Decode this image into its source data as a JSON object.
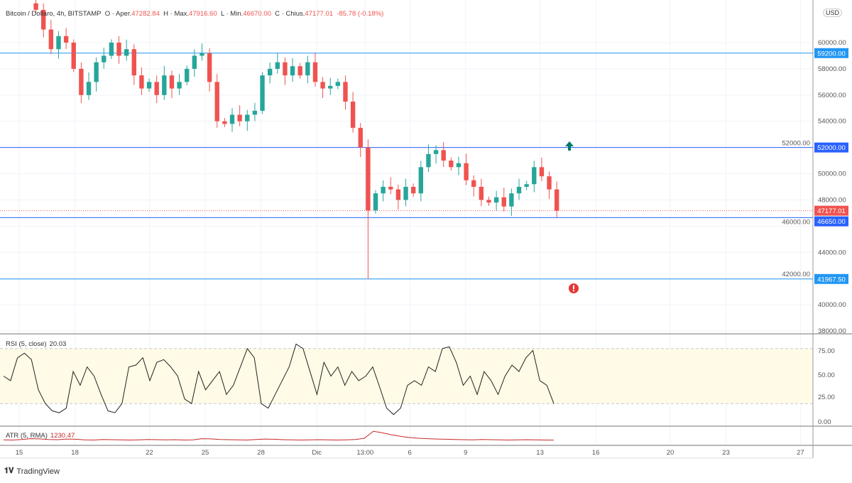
{
  "legend": {
    "symbol": "Bitcoin / Dollaro, 4h, BITSTAMP",
    "o_label": "O · Aper.",
    "open": "47282.84",
    "h_label": "H · Max.",
    "high": "47916.60",
    "l_label": "L · Min.",
    "low": "46670.00",
    "c_label": "C · Chius.",
    "close": "47177.01",
    "change": "-85.78 (-0.18%)"
  },
  "currency": "USD",
  "rsi": {
    "label": "RSI (5, close)",
    "value": "20.03",
    "ticks": [
      "75.00",
      "50.00",
      "25.00",
      "0.00"
    ],
    "values": [
      50,
      45,
      70,
      75,
      68,
      35,
      20,
      12,
      10,
      15,
      55,
      40,
      60,
      50,
      30,
      12,
      10,
      20,
      60,
      62,
      70,
      45,
      65,
      68,
      60,
      50,
      25,
      20,
      55,
      35,
      45,
      55,
      30,
      40,
      60,
      80,
      70,
      20,
      15,
      30,
      45,
      60,
      85,
      80,
      55,
      30,
      65,
      50,
      60,
      40,
      55,
      45,
      50,
      60,
      38,
      15,
      8,
      15,
      40,
      45,
      40,
      60,
      55,
      80,
      82,
      65,
      40,
      50,
      30,
      55,
      45,
      30,
      50,
      62,
      55,
      70,
      78,
      45,
      40,
      20
    ]
  },
  "atr": {
    "label": "ATR (5, RMA)",
    "value": "1230.47",
    "values": [
      1300,
      1250,
      1400,
      1600,
      1550,
      1400,
      1350,
      1500,
      1450,
      1300,
      1250,
      1400,
      1350,
      1300,
      1250,
      1300,
      1400,
      1350,
      1300,
      1350,
      1250,
      1300,
      1600,
      1550,
      1400,
      1350,
      1300,
      1250,
      1400,
      1500,
      1450,
      1350,
      1300,
      1250,
      1300,
      1350,
      1300,
      1250,
      1300,
      1400,
      1700,
      3500,
      3100,
      2600,
      2200,
      1900,
      1700,
      1600,
      1500,
      1450,
      1400,
      1350,
      1300,
      1400,
      1350,
      1300,
      1250,
      1300,
      1350,
      1300,
      1250,
      1230
    ]
  },
  "chart_data": {
    "type": "candlestick",
    "title": "Bitcoin / Dollaro, 4h, BITSTAMP",
    "ylim": [
      38000,
      62500
    ],
    "y_ticks": [
      60000,
      58000,
      56000,
      54000,
      52000,
      50000,
      48000,
      46000,
      44000,
      42000,
      40000,
      38000
    ],
    "x_ticks": [
      {
        "label": "15",
        "day": 0
      },
      {
        "label": "18",
        "day": 3
      },
      {
        "label": "22",
        "day": 7
      },
      {
        "label": "25",
        "day": 10
      },
      {
        "label": "28",
        "day": 13
      },
      {
        "label": "Dic",
        "day": 16
      },
      {
        "label": "13:00",
        "day": 18.6
      },
      {
        "label": "6",
        "day": 21
      },
      {
        "label": "9",
        "day": 24
      },
      {
        "label": "13",
        "day": 28
      },
      {
        "label": "16",
        "day": 31
      },
      {
        "label": "20",
        "day": 35
      },
      {
        "label": "23",
        "day": 38
      },
      {
        "label": "27",
        "day": 42
      }
    ],
    "candle_range_days": [
      0.9,
      28.9
    ],
    "first_open": 63000,
    "closes": [
      62500,
      61000,
      59500,
      60500,
      60000,
      58000,
      56000,
      57000,
      58500,
      59000,
      60000,
      59000,
      59500,
      57500,
      56500,
      57000,
      56000,
      57500,
      56500,
      57000,
      58000,
      59000,
      59200,
      57000,
      54000,
      53800,
      54500,
      54000,
      54500,
      54800,
      57500,
      58000,
      58500,
      57500,
      58200,
      57500,
      58500,
      57000,
      56500,
      56700,
      57000,
      55500,
      53500,
      52000,
      47200,
      48500,
      49000,
      48800,
      48000,
      49000,
      48500,
      50500,
      51500,
      51800,
      51000,
      50500,
      50800,
      49500,
      49000,
      48000,
      47800,
      48200,
      47500,
      48500,
      49000,
      49200,
      50500,
      49800,
      48800,
      47177.01
    ],
    "low_overrides": [
      {
        "index": 44,
        "low": 41967.5
      }
    ],
    "levels": [
      {
        "price": 59200,
        "label": "59200.00",
        "color": "#2196f3"
      },
      {
        "price": 52000,
        "label": "52000.00",
        "color": "#2962ff"
      },
      {
        "price": 46650,
        "label": "46650.00",
        "color": "#2962ff"
      },
      {
        "price": 41967.5,
        "label": "41967.50",
        "color": "#2196f3"
      }
    ],
    "last_price": {
      "price": 47177.01,
      "label": "47177.01",
      "color": "#ef5350"
    },
    "up_color": "#26a69a",
    "down_color": "#ef5350"
  },
  "brand": "TradingView"
}
